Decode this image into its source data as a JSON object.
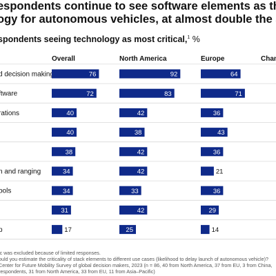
{
  "title": {
    "line1": "espondents continue to see software elements as the most c",
    "line2": "ogy for autonomous vehicles, at almost double the average ra"
  },
  "subtitle": {
    "text": "spondents seeing technology as most critical,",
    "sup": "1",
    "unit": " %"
  },
  "chart_data": {
    "type": "bar",
    "categories": [
      "d decision making",
      "ftware",
      "rations",
      "",
      "",
      "n and ranging",
      "ools",
      "",
      "p"
    ],
    "series": [
      {
        "name": "Overall",
        "values": [
          76,
          72,
          40,
          40,
          38,
          34,
          34,
          31,
          17
        ]
      },
      {
        "name": "North America",
        "values": [
          92,
          83,
          42,
          38,
          42,
          42,
          33,
          42,
          25
        ]
      },
      {
        "name": "Europe",
        "values": [
          64,
          71,
          36,
          43,
          36,
          21,
          36,
          29,
          14
        ]
      }
    ],
    "extra_column_header": "Chan",
    "bar_color": "#0f2a8a",
    "label_color_inside": "#ffffff",
    "label_color_outside": "#111111",
    "scale_max": 100
  },
  "footnotes": [
    "ic was excluded because of limited responses.",
    "ould you estimate the criticality of stack elements to different use cases (likelihood to delay launch of autonomous vehicle)?",
    "Center for Future Mobility Survey of global decision makers, 2023 (n = 86, 40 from North America, 37 from EU, 3 from China,",
    "respondents, 31 from North America, 33 from EU, 11 from Asia–Pacific)"
  ]
}
